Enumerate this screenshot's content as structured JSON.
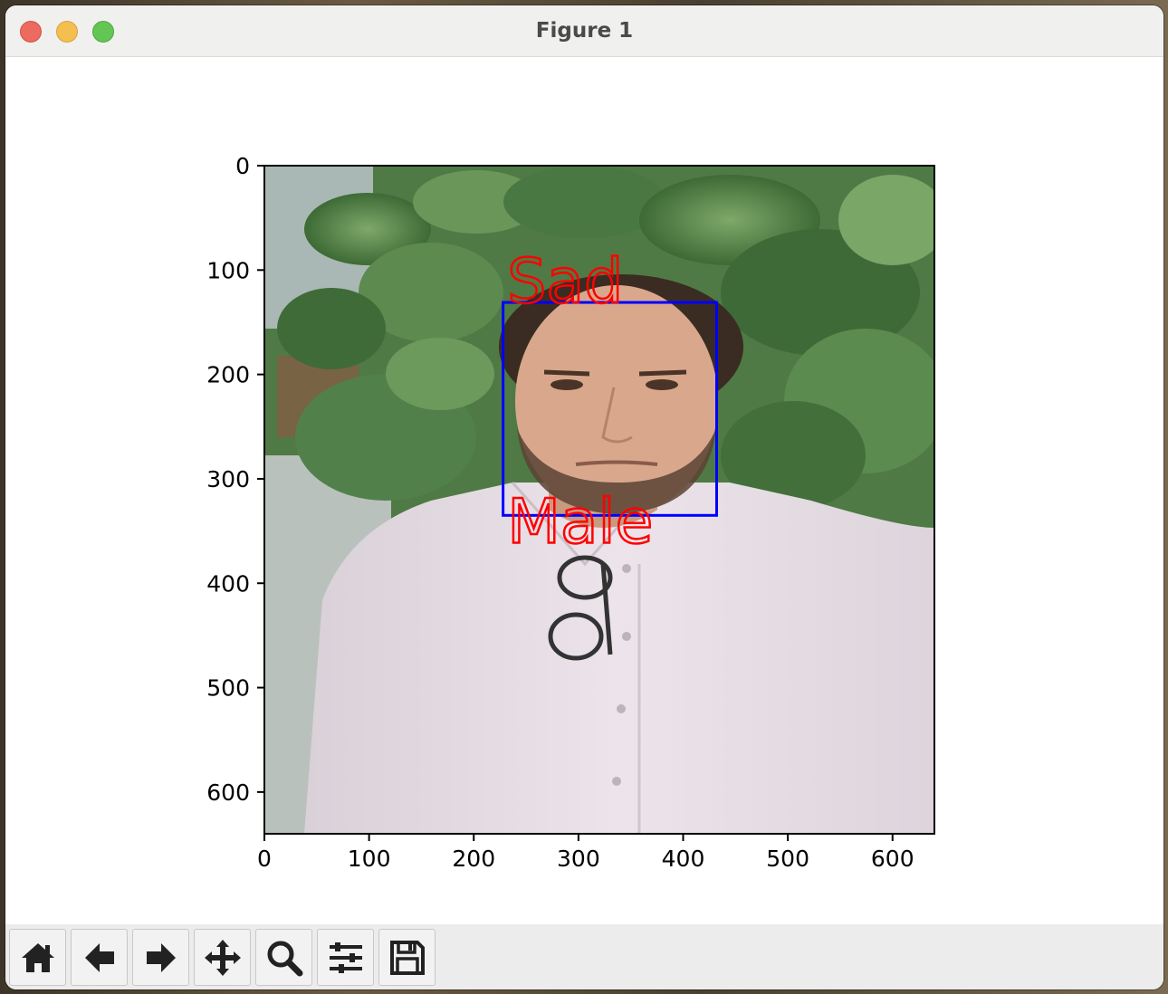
{
  "window": {
    "title": "Figure 1"
  },
  "toolbar": {
    "buttons": [
      {
        "id": "home",
        "icon": "home-icon"
      },
      {
        "id": "back",
        "icon": "arrow-left-icon"
      },
      {
        "id": "forward",
        "icon": "arrow-right-icon"
      },
      {
        "id": "pan",
        "icon": "move-icon"
      },
      {
        "id": "zoom",
        "icon": "magnifier-icon"
      },
      {
        "id": "configure",
        "icon": "sliders-icon"
      },
      {
        "id": "save",
        "icon": "floppy-disk-icon"
      }
    ]
  },
  "chart_data": {
    "type": "image",
    "title": "",
    "xlabel": "",
    "ylabel": "",
    "xlim": [
      0,
      640
    ],
    "ylim": [
      640,
      0
    ],
    "x_ticks": [
      0,
      100,
      200,
      300,
      400,
      500,
      600
    ],
    "y_ticks": [
      0,
      100,
      200,
      300,
      400,
      500,
      600
    ],
    "x_tick_labels": [
      "0",
      "100",
      "200",
      "300",
      "400",
      "500",
      "600"
    ],
    "y_tick_labels": [
      "0",
      "100",
      "200",
      "300",
      "400",
      "500",
      "600"
    ],
    "annotations": {
      "face_box": {
        "x1": 228,
        "y1": 131,
        "x2": 432,
        "y2": 335,
        "color": "#0000ff"
      },
      "emotion_label": {
        "text": "Sad",
        "x": 232,
        "y": 131,
        "color": "#ff0000"
      },
      "gender_label": {
        "text": "Male",
        "x": 232,
        "y": 361,
        "color": "#ff0000"
      }
    }
  }
}
